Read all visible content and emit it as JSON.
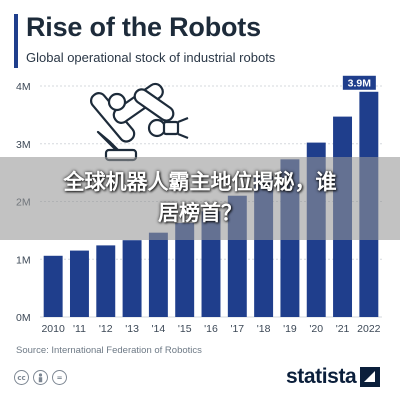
{
  "header": {
    "title": "Rise of the Robots",
    "subtitle": "Global operational stock of industrial robots"
  },
  "overlay": {
    "line1": "全球机器人霸主地位揭秘，谁",
    "line2": "居榜首？"
  },
  "chart_data": {
    "type": "bar",
    "categories": [
      "2010",
      "'11",
      "'12",
      "'13",
      "'14",
      "'15",
      "'16",
      "'17",
      "'18",
      "'19",
      "'20",
      "'21",
      "2022"
    ],
    "values": [
      1.06,
      1.15,
      1.24,
      1.33,
      1.46,
      1.63,
      1.83,
      2.1,
      2.44,
      2.73,
      3.02,
      3.47,
      3.9
    ],
    "unit": "M",
    "y_ticks": [
      "0M",
      "1M",
      "2M",
      "3M",
      "4M"
    ],
    "ylim": [
      0,
      4
    ],
    "grid": true,
    "highlight_label": "3.9M",
    "colors": {
      "bar": "#1f3e8c",
      "label_box": "#1f3e8c",
      "grid": "#d5d9de"
    }
  },
  "footer": {
    "source": "Source: International Federation of Robotics",
    "brand": "statista",
    "license_icons": [
      "creative-commons-icon",
      "attribution-icon",
      "no-derivatives-icon"
    ]
  }
}
